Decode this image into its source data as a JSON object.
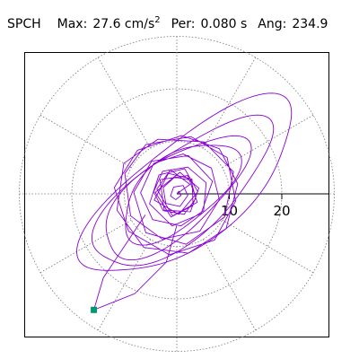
{
  "header": {
    "station": "SPCH",
    "max_label": "Max:",
    "max_value": "27.6 cm/s",
    "max_exp": "2",
    "per_label": "Per:",
    "per_value": "0.080 s",
    "ang_label": "Ang:",
    "ang_value": "234.9"
  },
  "chart_data": {
    "type": "polar-particle-motion",
    "radial_ticks": [
      {
        "value": 10,
        "label": "10"
      },
      {
        "value": 20,
        "label": "20"
      }
    ],
    "r_max": 30,
    "grid_rings": [
      10,
      20,
      30
    ],
    "grid_spokes_deg": [
      0,
      30,
      60,
      90,
      120,
      150,
      180,
      210,
      240,
      270,
      300,
      330
    ],
    "max_amplitude": 27.6,
    "max_direction_deg": 234.9,
    "trace_color": "#8a00d4",
    "marker_color": "#009870",
    "grid_style": "dotted",
    "trace_points": [
      [
        0,
        0
      ],
      [
        2.5,
        1.8
      ],
      [
        -1.2,
        4.6
      ],
      [
        -3.8,
        0.9
      ],
      [
        -0.8,
        -4.2
      ],
      [
        3.9,
        -1.6
      ],
      [
        2.1,
        3.5
      ],
      [
        -3.2,
        2.7
      ],
      [
        -2.4,
        -3.1
      ],
      [
        2.6,
        -3.4
      ],
      [
        4.2,
        1.1
      ],
      [
        0.6,
        4.1
      ],
      [
        -4.1,
        0.3
      ],
      [
        -1.1,
        -4.4
      ],
      [
        3.1,
        -2.2
      ],
      [
        2.9,
        2.8
      ],
      [
        -1.6,
        3.9
      ],
      [
        -4.3,
        -1.2
      ],
      [
        0.4,
        -3.9
      ],
      [
        4.0,
        0.4
      ],
      [
        1.5,
        4.8
      ],
      [
        -3.4,
        3.6
      ],
      [
        -5.2,
        -1.9
      ],
      [
        -0.9,
        -6.1
      ],
      [
        4.6,
        -3.8
      ],
      [
        6.8,
        2.4
      ],
      [
        2.2,
        7.3
      ],
      [
        -4.8,
        6.2
      ],
      [
        -8.2,
        0.3
      ],
      [
        -5.9,
        -7.4
      ],
      [
        1.8,
        -9.6
      ],
      [
        9.1,
        -4.4
      ],
      [
        10.8,
        4.2
      ],
      [
        5.2,
        9.9
      ],
      [
        -3.6,
        10.4
      ],
      [
        -10.1,
        5.8
      ],
      [
        -11.4,
        -3.1
      ],
      [
        -6.3,
        -10.2
      ],
      [
        2.2,
        -11.3
      ],
      [
        9.4,
        -6.6
      ],
      [
        11.6,
        1.9
      ],
      [
        8.1,
        8.6
      ],
      [
        0.9,
        11.1
      ],
      [
        -7.5,
        8.3
      ],
      [
        -11.9,
        1.2
      ],
      [
        -9.2,
        -7.1
      ],
      [
        -1.4,
        -11.6
      ],
      [
        7.2,
        -8.8
      ],
      [
        11.2,
        -1.4
      ],
      [
        9.6,
        6.9
      ],
      [
        2.7,
        10.9
      ],
      [
        -5.9,
        9.4
      ],
      [
        -9.9,
        3.9
      ],
      [
        -8.8,
        -4.2
      ],
      [
        -2.8,
        -8.6
      ],
      [
        4.4,
        -7.1
      ],
      [
        8.1,
        -1.1
      ],
      [
        6.6,
        4.9
      ],
      [
        1.2,
        7.6
      ],
      [
        -4.4,
        5.8
      ],
      [
        -6.9,
        0.2
      ],
      [
        -4.6,
        -4.9
      ],
      [
        0.8,
        -6.1
      ],
      [
        5.1,
        -3.2
      ],
      [
        5.6,
        2.1
      ],
      [
        2.1,
        5.1
      ],
      [
        -2.7,
        4.3
      ],
      [
        -4.4,
        0.4
      ],
      [
        -2.6,
        -3.2
      ],
      [
        1.4,
        -3.9
      ],
      [
        3.6,
        -0.9
      ],
      [
        2.7,
        2.6
      ],
      [
        -0.4,
        3.2
      ],
      [
        -2.6,
        1.2
      ],
      [
        -2.1,
        -1.8
      ],
      [
        0.6,
        -2.4
      ],
      [
        2.1,
        -0.3
      ],
      [
        1.2,
        1.6
      ],
      [
        -0.6,
        1.3
      ],
      [
        -1.2,
        -0.4
      ],
      [
        -0.2,
        -1.1
      ],
      [
        0.8,
        -0.3
      ],
      [
        0.4,
        0.5
      ],
      [
        0,
        0
      ]
    ],
    "end_marker": [
      -15.8,
      -22.1
    ]
  }
}
